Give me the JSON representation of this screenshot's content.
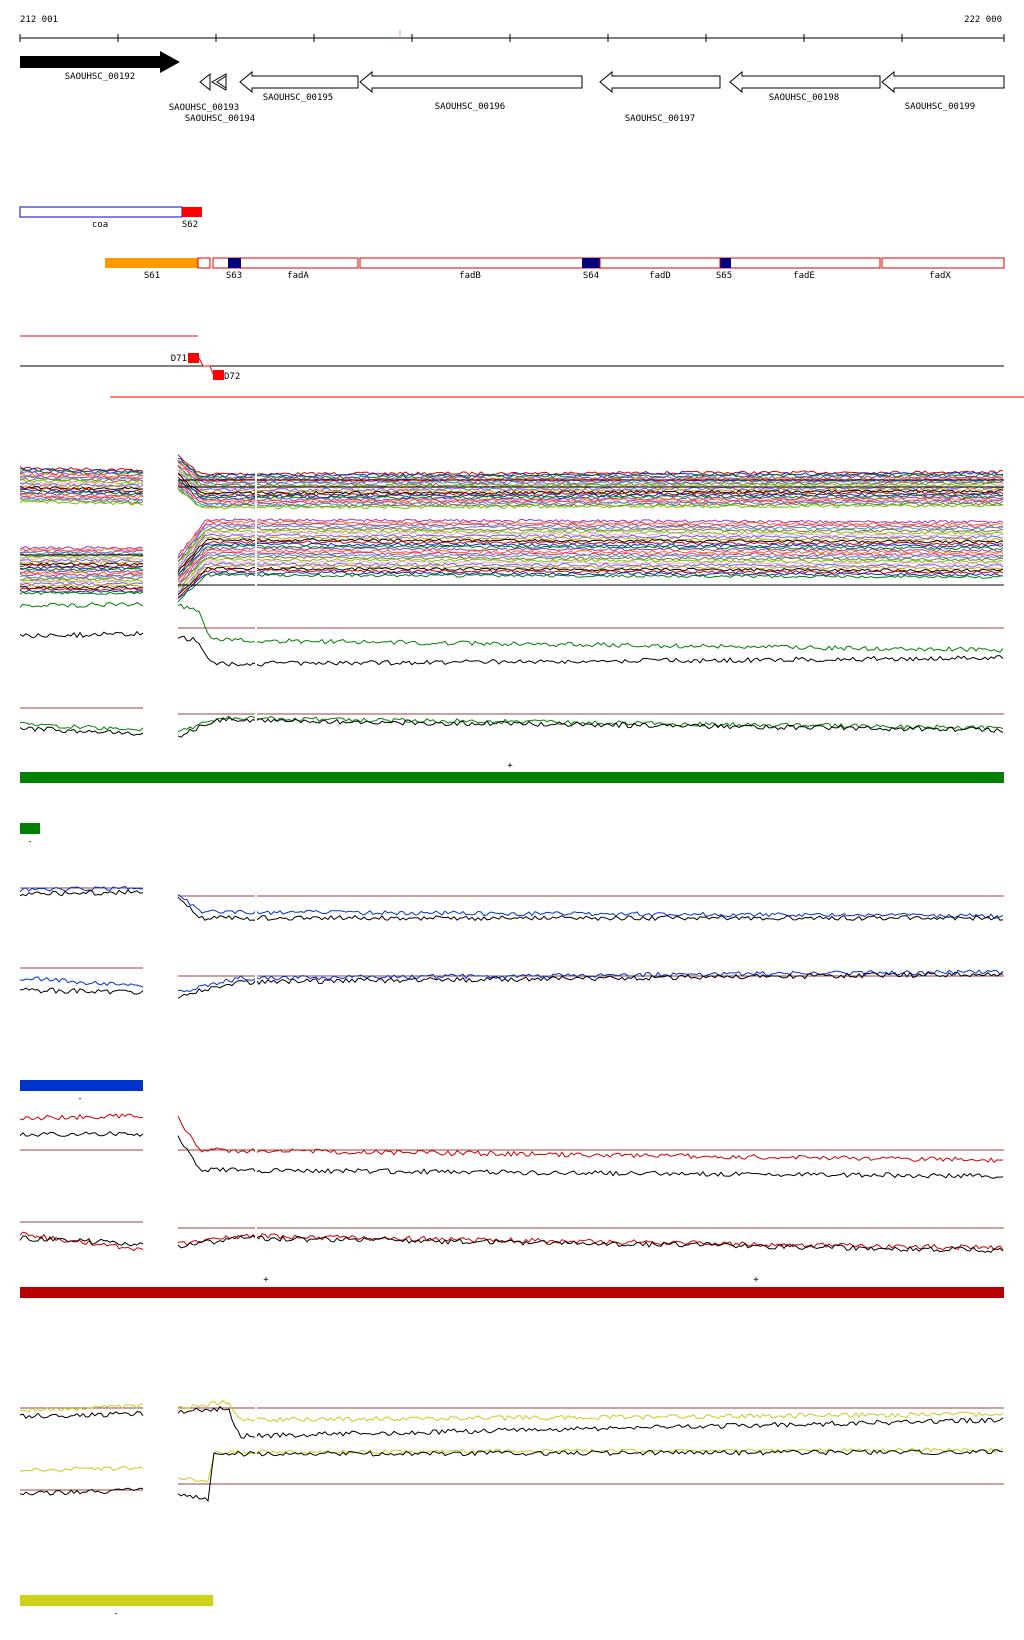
{
  "ruler": {
    "start_label": "212 001",
    "end_label": "222 000"
  },
  "genes": [
    {
      "name": "SAOUHSC_00192"
    },
    {
      "name": "SAOUHSC_00193"
    },
    {
      "name": "SAOUHSC_00194"
    },
    {
      "name": "SAOUHSC_00195"
    },
    {
      "name": "SAOUHSC_00196"
    },
    {
      "name": "SAOUHSC_00197"
    },
    {
      "name": "SAOUHSC_00198"
    },
    {
      "name": "SAOUHSC_00199"
    }
  ],
  "segments_row1": [
    {
      "name": "coa",
      "color": "#0000cc"
    },
    {
      "name": "S62",
      "color": "#ff0000"
    }
  ],
  "segments_row2": [
    {
      "name": "S61",
      "color": "#ff9900"
    },
    {
      "name": "S63",
      "color": "#000080"
    },
    {
      "name": "fadA",
      "color": "#dd0000"
    },
    {
      "name": "fadB",
      "color": "#dd0000"
    },
    {
      "name": "S64",
      "color": "#000080"
    },
    {
      "name": "fadD",
      "color": "#dd0000"
    },
    {
      "name": "S65",
      "color": "#000080"
    },
    {
      "name": "fadE",
      "color": "#dd0000"
    },
    {
      "name": "fadX",
      "color": "#dd0000"
    }
  ],
  "deletions": [
    {
      "name": "D71",
      "color": "#ff0000"
    },
    {
      "name": "D72",
      "color": "#ff0000"
    }
  ],
  "condition_bars": [
    {
      "color": "#008000",
      "strand_marks": [
        "+",
        "-"
      ]
    },
    {
      "color": "#0033cc",
      "strand_marks": [
        "-"
      ]
    },
    {
      "color": "#bb0000",
      "strand_marks": [
        "+",
        "+"
      ]
    },
    {
      "color": "#ccd215",
      "strand_marks": [
        "-"
      ]
    }
  ],
  "colors": {
    "threshold": "#a04040",
    "black": "#000000",
    "green": "#008000",
    "blue": "#0033cc",
    "red": "#cc0000",
    "yellow": "#c8cc20"
  }
}
